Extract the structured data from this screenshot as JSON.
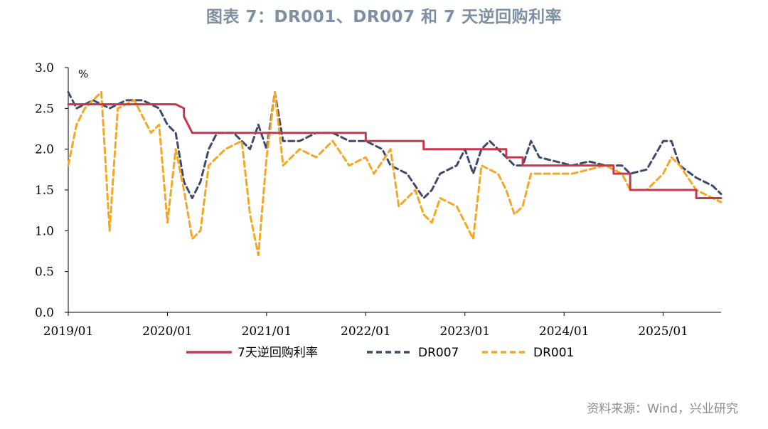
{
  "title": "图表 7：DR001、DR007 和 7 天逆回购利率",
  "source": "资料来源：Wind，兴业研究",
  "chart_data": {
    "type": "line",
    "title": "图表 7：DR001、DR007 和 7 天逆回购利率",
    "ylabel": "%",
    "xlabel": "",
    "ylim": [
      0,
      3.0
    ],
    "xlim": [
      "2019-01",
      "2025-08"
    ],
    "yticks": [
      "0.0",
      "0.5",
      "1.0",
      "1.5",
      "2.0",
      "2.5",
      "3.0"
    ],
    "xticks": [
      "2019/01",
      "2020/01",
      "2021/01",
      "2022/01",
      "2023/01",
      "2024/01",
      "2025/01"
    ],
    "grid": false,
    "legend_position": "bottom",
    "colors": {
      "repo": "#c8374d",
      "dr007": "#3c4b6b",
      "dr001": "#f5a623"
    },
    "series": [
      {
        "name": "7天逆回购利率",
        "style": "solid",
        "step": true,
        "x": [
          "2019-01",
          "2020-02",
          "2020-03",
          "2020-03",
          "2020-04",
          "2022-01",
          "2022-01",
          "2022-08",
          "2022-08",
          "2023-06",
          "2023-06",
          "2023-08",
          "2023-08",
          "2024-07",
          "2024-07",
          "2024-09",
          "2024-09",
          "2025-05",
          "2025-05",
          "2025-08"
        ],
        "values": [
          2.55,
          2.55,
          2.5,
          2.4,
          2.2,
          2.2,
          2.1,
          2.1,
          2.0,
          2.0,
          1.9,
          1.9,
          1.8,
          1.8,
          1.7,
          1.7,
          1.5,
          1.5,
          1.4,
          1.4
        ]
      },
      {
        "name": "DR007",
        "style": "dashed",
        "x": [
          "2019-01",
          "2019-02",
          "2019-04",
          "2019-06",
          "2019-08",
          "2019-10",
          "2019-12",
          "2020-01",
          "2020-02",
          "2020-03",
          "2020-04",
          "2020-05",
          "2020-06",
          "2020-07",
          "2020-09",
          "2020-11",
          "2020-12",
          "2021-01",
          "2021-02",
          "2021-03",
          "2021-05",
          "2021-07",
          "2021-09",
          "2021-11",
          "2022-01",
          "2022-03",
          "2022-04",
          "2022-06",
          "2022-08",
          "2022-09",
          "2022-10",
          "2022-12",
          "2023-01",
          "2023-02",
          "2023-03",
          "2023-04",
          "2023-06",
          "2023-07",
          "2023-08",
          "2023-09",
          "2023-10",
          "2023-12",
          "2024-02",
          "2024-04",
          "2024-06",
          "2024-08",
          "2024-09",
          "2024-11",
          "2025-01",
          "2025-02",
          "2025-03",
          "2025-05",
          "2025-07",
          "2025-08"
        ],
        "values": [
          2.7,
          2.5,
          2.6,
          2.5,
          2.6,
          2.6,
          2.5,
          2.3,
          2.2,
          1.6,
          1.4,
          1.6,
          2.0,
          2.2,
          2.2,
          2.0,
          2.3,
          2.0,
          2.7,
          2.1,
          2.1,
          2.2,
          2.2,
          2.1,
          2.1,
          2.0,
          1.8,
          1.7,
          1.4,
          1.5,
          1.7,
          1.8,
          2.0,
          1.7,
          2.0,
          2.1,
          1.9,
          1.8,
          1.8,
          2.1,
          1.9,
          1.85,
          1.8,
          1.85,
          1.8,
          1.8,
          1.7,
          1.75,
          2.1,
          2.1,
          1.8,
          1.65,
          1.55,
          1.45
        ]
      },
      {
        "name": "DR001",
        "style": "dashed",
        "x": [
          "2019-01",
          "2019-02",
          "2019-03",
          "2019-05",
          "2019-06",
          "2019-07",
          "2019-09",
          "2019-11",
          "2019-12",
          "2020-01",
          "2020-02",
          "2020-03",
          "2020-04",
          "2020-05",
          "2020-06",
          "2020-08",
          "2020-10",
          "2020-11",
          "2020-12",
          "2021-01",
          "2021-02",
          "2021-03",
          "2021-05",
          "2021-07",
          "2021-09",
          "2021-11",
          "2022-01",
          "2022-02",
          "2022-04",
          "2022-05",
          "2022-07",
          "2022-08",
          "2022-09",
          "2022-10",
          "2022-12",
          "2023-01",
          "2023-02",
          "2023-03",
          "2023-05",
          "2023-06",
          "2023-07",
          "2023-08",
          "2023-09",
          "2023-10",
          "2023-12",
          "2024-02",
          "2024-04",
          "2024-06",
          "2024-08",
          "2024-09",
          "2024-11",
          "2025-01",
          "2025-02",
          "2025-03",
          "2025-05",
          "2025-07",
          "2025-08"
        ],
        "values": [
          1.8,
          2.3,
          2.5,
          2.7,
          1.0,
          2.5,
          2.6,
          2.2,
          2.3,
          1.1,
          2.0,
          1.5,
          0.9,
          1.0,
          1.8,
          2.0,
          2.1,
          1.2,
          0.7,
          1.9,
          2.7,
          1.8,
          2.0,
          1.9,
          2.1,
          1.8,
          1.9,
          1.7,
          2.0,
          1.3,
          1.5,
          1.2,
          1.1,
          1.4,
          1.3,
          1.1,
          0.9,
          1.8,
          1.7,
          1.5,
          1.2,
          1.3,
          1.7,
          1.7,
          1.7,
          1.7,
          1.75,
          1.8,
          1.7,
          1.5,
          1.5,
          1.7,
          1.9,
          1.8,
          1.5,
          1.4,
          1.35
        ]
      }
    ]
  }
}
